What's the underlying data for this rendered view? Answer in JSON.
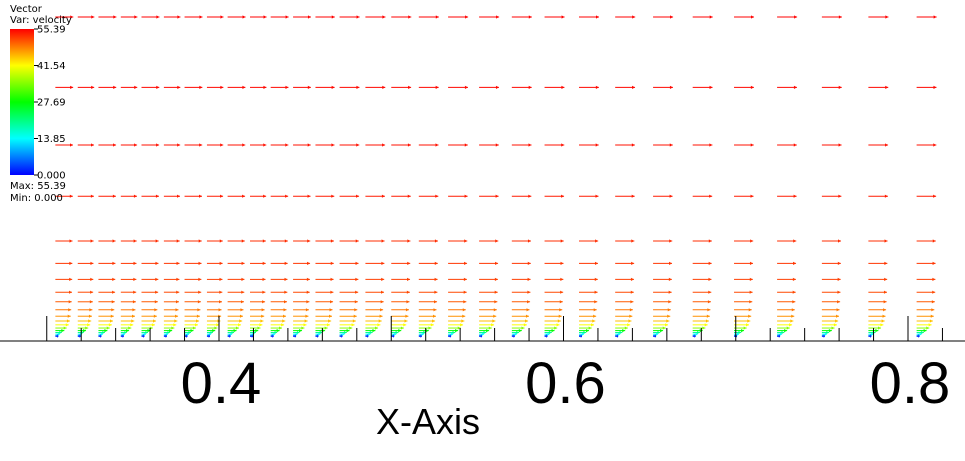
{
  "legend": {
    "title_line1": "Vector",
    "title_line2": "Var: velocity",
    "max_label": "Max: 55.39",
    "min_label": "Min: 0.000",
    "tick_labels": [
      "55.39",
      "41.54",
      "27.69",
      "13.85",
      "0.000"
    ],
    "tick_values": [
      55.39,
      41.54,
      27.69,
      13.85,
      0.0
    ],
    "colors": [
      "#ff0000",
      "#ffff00",
      "#00ff00",
      "#00ffff",
      "#0000ff"
    ]
  },
  "chart_data": {
    "type": "scatter",
    "subtype": "vector-field",
    "xlabel": "X-Axis",
    "xticks": [
      {
        "value": 0.4,
        "label": "0.4"
      },
      {
        "value": 0.6,
        "label": "0.6"
      },
      {
        "value": 0.8,
        "label": "0.8"
      }
    ],
    "xlim": [
      0.3,
      0.85
    ],
    "value_range": [
      0.0,
      55.39
    ],
    "grid": false,
    "legend_position": "top-left",
    "arrow_direction": "+x",
    "columns_x": [
      0.305,
      0.318,
      0.33,
      0.343,
      0.355,
      0.368,
      0.38,
      0.393,
      0.405,
      0.418,
      0.43,
      0.443,
      0.456,
      0.47,
      0.485,
      0.5,
      0.516,
      0.533,
      0.551,
      0.57,
      0.589,
      0.609,
      0.63,
      0.652,
      0.675,
      0.699,
      0.724,
      0.75,
      0.777,
      0.805,
      0.835
    ],
    "rows": [
      {
        "height": 1.0,
        "velocity": 55.39
      },
      {
        "height": 0.78,
        "velocity": 55.0
      },
      {
        "height": 0.6,
        "velocity": 54.5
      },
      {
        "height": 0.44,
        "velocity": 54.0
      },
      {
        "height": 0.3,
        "velocity": 53.0
      },
      {
        "height": 0.23,
        "velocity": 52.5
      },
      {
        "height": 0.18,
        "velocity": 52.0
      },
      {
        "height": 0.14,
        "velocity": 51.5
      },
      {
        "height": 0.11,
        "velocity": 50.5
      },
      {
        "height": 0.085,
        "velocity": 49.0
      },
      {
        "height": 0.065,
        "velocity": 47.5
      },
      {
        "height": 0.05,
        "velocity": 45.0
      },
      {
        "height": 0.038,
        "velocity": 41.5
      },
      {
        "height": 0.028,
        "velocity": 35.0
      },
      {
        "height": 0.02,
        "velocity": 27.7
      },
      {
        "height": 0.014,
        "velocity": 20.0
      },
      {
        "height": 0.009,
        "velocity": 13.85
      },
      {
        "height": 0.005,
        "velocity": 7.0
      },
      {
        "height": 0.002,
        "velocity": 2.0
      }
    ]
  }
}
